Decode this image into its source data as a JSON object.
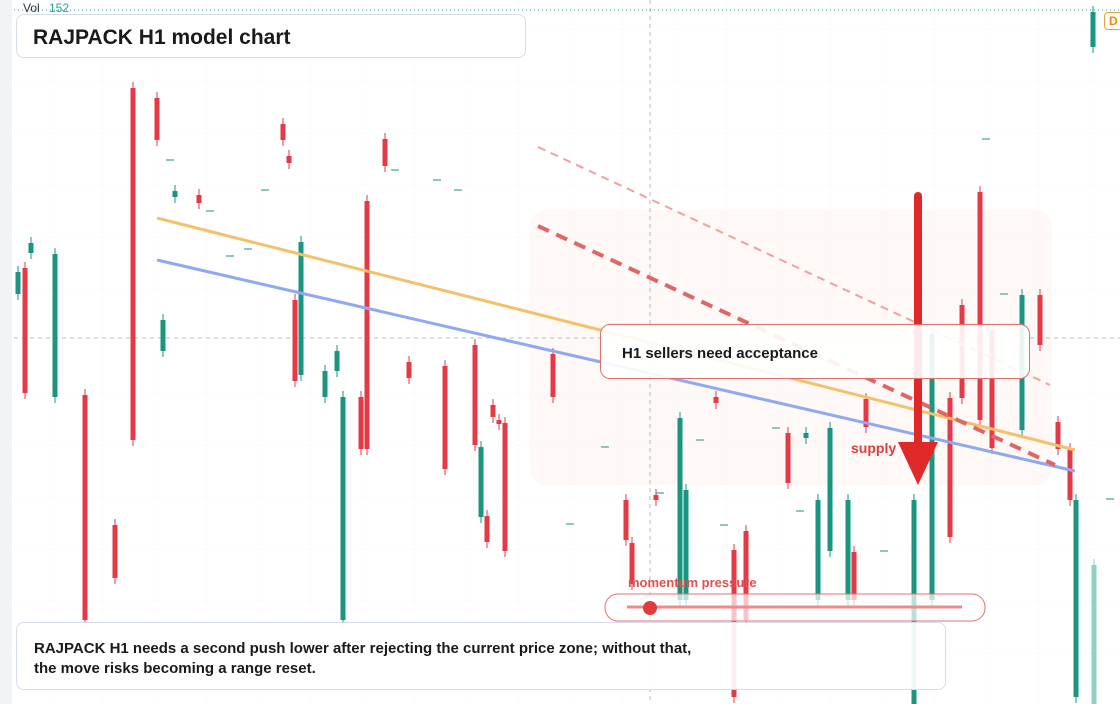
{
  "header": {
    "volume_label": "Vol",
    "volume_value": "152",
    "badge": "D",
    "title": "RAJPACK H1 model chart"
  },
  "annotations": {
    "callout": "H1 sellers need acceptance",
    "supply": "supply",
    "momentum": "momentum pressure"
  },
  "footer": {
    "text": "RAJPACK H1 needs a second push lower after rejecting the current price zone; without that, the move risks becoming a range reset."
  }
}
